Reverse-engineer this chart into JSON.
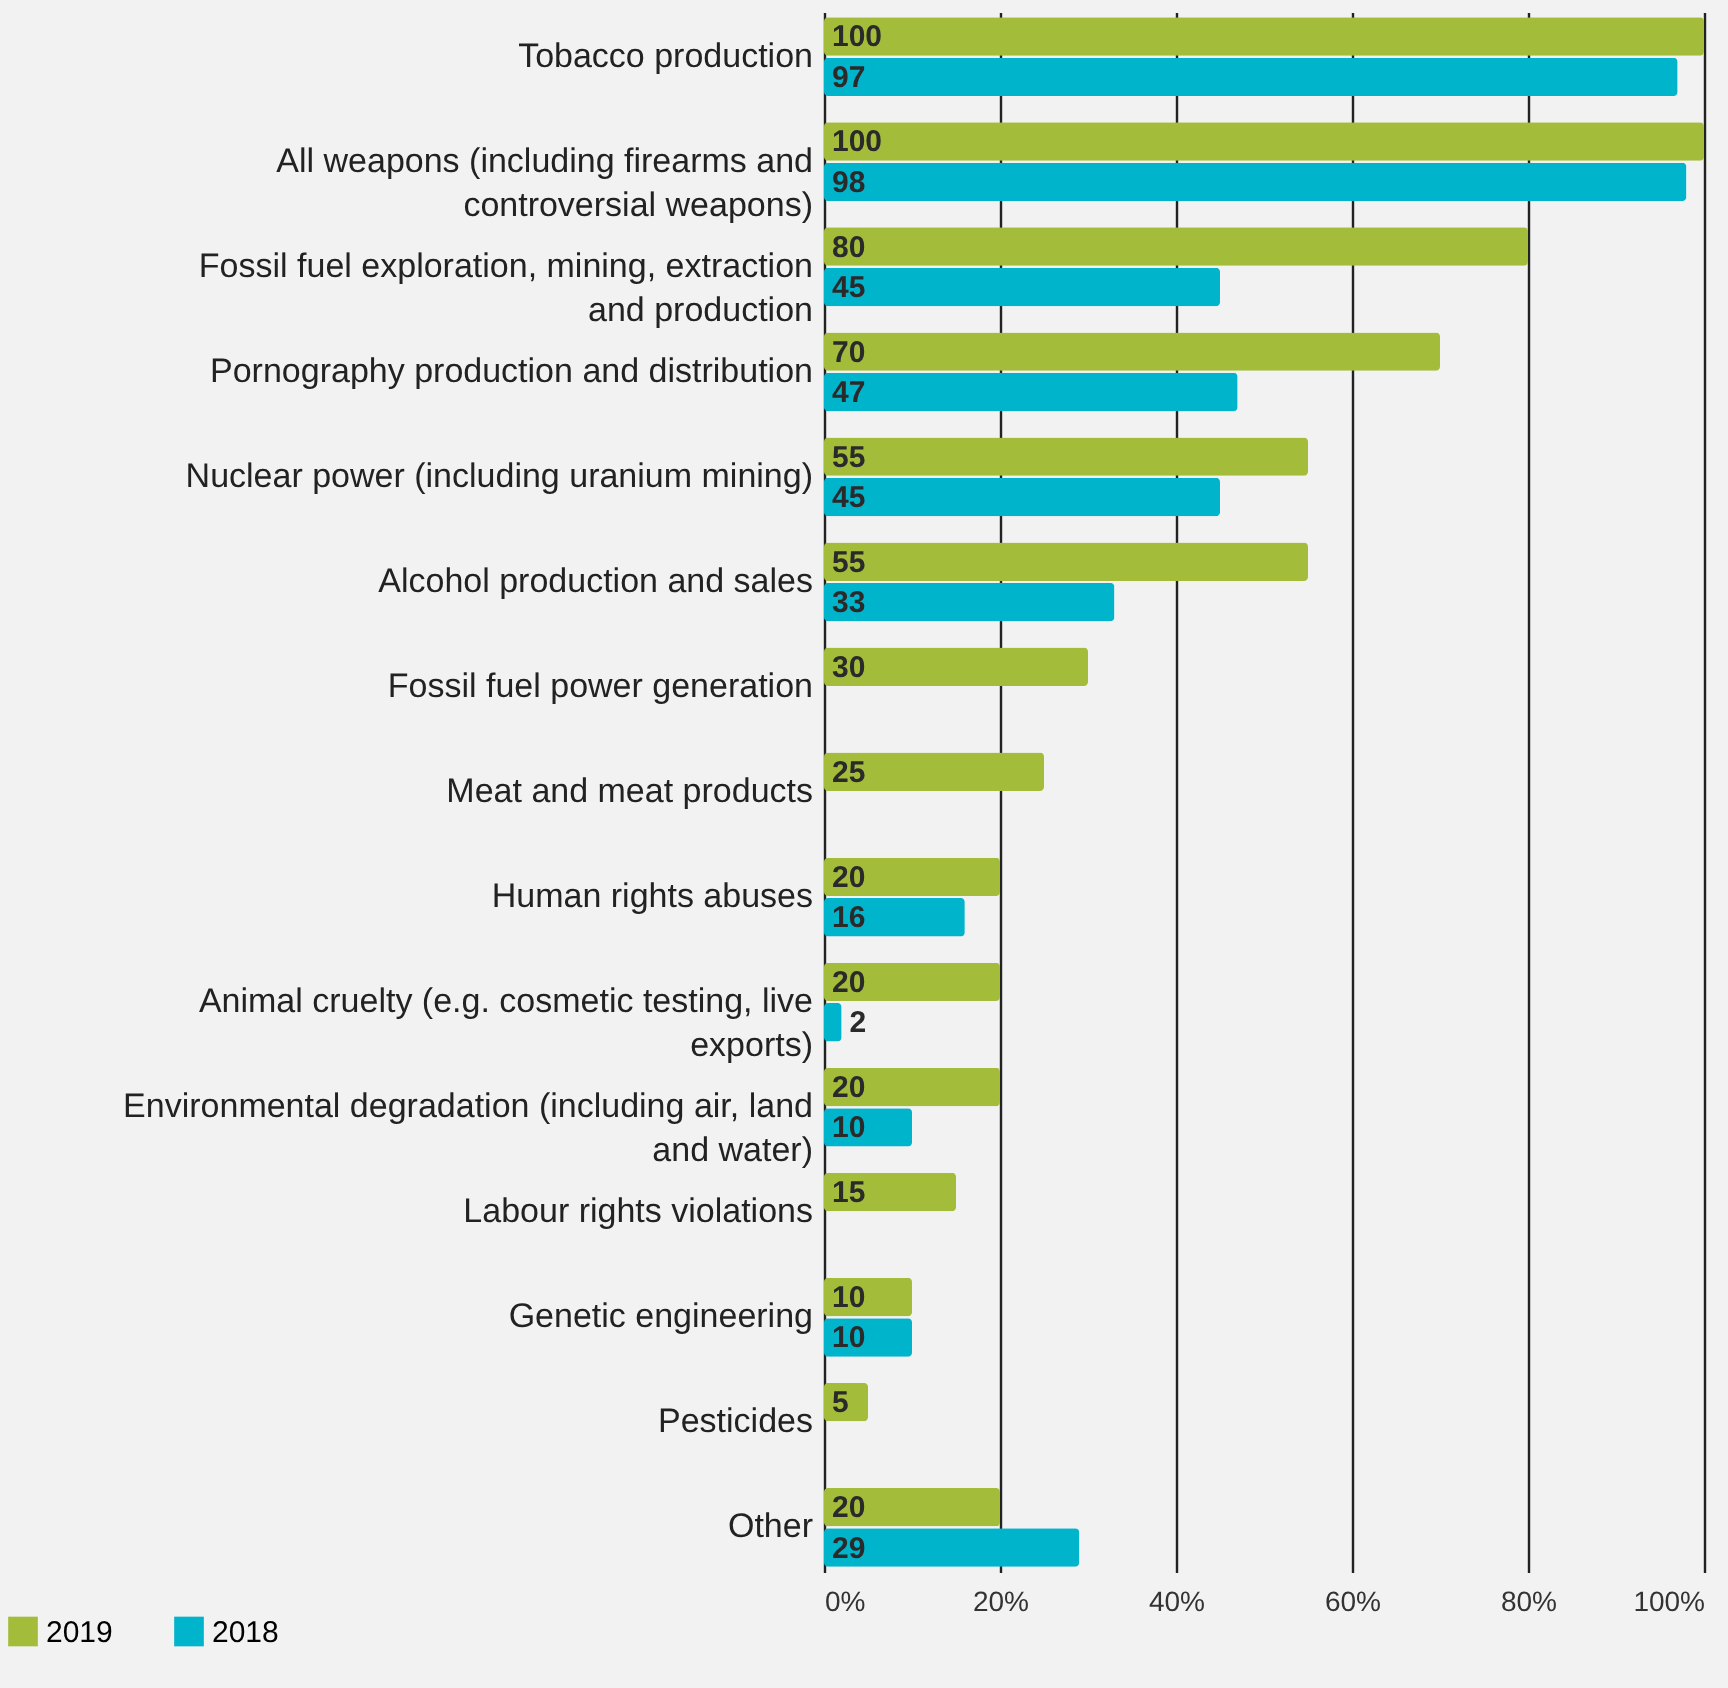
{
  "chart_data": {
    "type": "bar",
    "orientation": "horizontal",
    "categories": [
      "Tobacco production",
      "All weapons (including firearms and controversial weapons)",
      "Fossil fuel exploration, mining, extraction and production",
      "Pornography production and distribution",
      "Nuclear power (including uranium mining)",
      "Alcohol production and sales",
      "Fossil fuel power generation",
      "Meat and meat products",
      "Human rights abuses",
      "Animal cruelty (e.g. cosmetic testing, live exports)",
      "Environmental degradation (including air, land and water)",
      "Labour rights violations",
      "Genetic engineering",
      "Pesticides",
      "Other"
    ],
    "series": [
      {
        "name": "2019",
        "color": "#a3bd3a",
        "values": [
          100,
          100,
          80,
          70,
          55,
          55,
          30,
          25,
          20,
          20,
          20,
          15,
          10,
          5,
          20
        ]
      },
      {
        "name": "2018",
        "color": "#00b4cc",
        "values": [
          97,
          98,
          45,
          47,
          45,
          33,
          null,
          null,
          16,
          2,
          10,
          null,
          10,
          null,
          29
        ]
      }
    ],
    "xlim": [
      0,
      100
    ],
    "xticks": [
      {
        "value": 0,
        "label": "0%"
      },
      {
        "value": 20,
        "label": "20%"
      },
      {
        "value": 40,
        "label": "40%"
      },
      {
        "value": 60,
        "label": "60%"
      },
      {
        "value": 80,
        "label": "80%"
      },
      {
        "value": 100,
        "label": "100%"
      }
    ],
    "grid": "x",
    "legend": "bottom left",
    "data_labels": true
  }
}
